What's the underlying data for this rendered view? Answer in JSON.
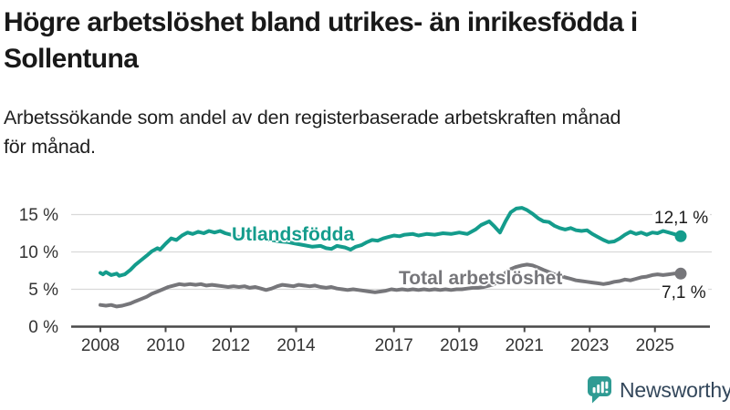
{
  "header": {
    "title": "Högre arbetslöshet bland utrikes- än inrikesfödda i Sollentuna",
    "title_lines": [
      "Högre arbetslöshet bland utrikes- än inrikesfödda i",
      "Sollentuna"
    ],
    "subtitle": "Arbetssökande som andel av den registerbaserade arbetskraften månad för månad.",
    "subtitle_lines": [
      "Arbetssökande som andel av den registerbaserade arbetskraften månad",
      "för månad."
    ]
  },
  "chart_data": {
    "type": "line",
    "title": "Högre arbetslöshet bland utrikes- än inrikesfödda i Sollentuna",
    "subtitle": "Arbetssökande som andel av den registerbaserade arbetskraften månad för månad.",
    "xlabel": "",
    "ylabel": "",
    "grid": "horizontal",
    "legend_position": "inline-labels",
    "x_range": [
      2008,
      2025.79
    ],
    "ylim": [
      0,
      16.5
    ],
    "y_tick_values": [
      0,
      5,
      10,
      15
    ],
    "y_tick_labels": [
      "0 %",
      "5 %",
      "10 %",
      "15 %"
    ],
    "x_tick_values": [
      2008,
      2010,
      2012,
      2014,
      2017,
      2019,
      2021,
      2023,
      2025
    ],
    "x_tick_labels": [
      "2008",
      "2010",
      "2012",
      "2014",
      "2017",
      "2019",
      "2021",
      "2023",
      "2025"
    ],
    "series": [
      {
        "id": "utlandsfodda",
        "name": "Utlandsfödda",
        "color": "#149c8c",
        "end_label": "12,1 %",
        "end_value": 12.1,
        "points": [
          [
            2008.0,
            7.2
          ],
          [
            2008.08,
            7.0
          ],
          [
            2008.17,
            7.3
          ],
          [
            2008.33,
            6.9
          ],
          [
            2008.5,
            7.1
          ],
          [
            2008.58,
            6.8
          ],
          [
            2008.75,
            7.0
          ],
          [
            2008.92,
            7.6
          ],
          [
            2009.08,
            8.3
          ],
          [
            2009.25,
            8.9
          ],
          [
            2009.42,
            9.5
          ],
          [
            2009.58,
            10.1
          ],
          [
            2009.75,
            10.5
          ],
          [
            2009.83,
            10.3
          ],
          [
            2010.0,
            11.1
          ],
          [
            2010.17,
            11.8
          ],
          [
            2010.33,
            11.6
          ],
          [
            2010.5,
            12.2
          ],
          [
            2010.67,
            12.6
          ],
          [
            2010.83,
            12.4
          ],
          [
            2011.0,
            12.7
          ],
          [
            2011.17,
            12.5
          ],
          [
            2011.33,
            12.8
          ],
          [
            2011.5,
            12.6
          ],
          [
            2011.67,
            12.8
          ],
          [
            2011.83,
            12.5
          ],
          [
            2012.0,
            12.3
          ],
          [
            2012.25,
            12.0
          ],
          [
            2012.5,
            11.9
          ],
          [
            2012.75,
            12.1
          ],
          [
            2013.0,
            11.8
          ],
          [
            2013.25,
            11.6
          ],
          [
            2013.5,
            11.4
          ],
          [
            2013.75,
            11.3
          ],
          [
            2014.0,
            11.1
          ],
          [
            2014.25,
            10.9
          ],
          [
            2014.5,
            10.7
          ],
          [
            2014.75,
            10.8
          ],
          [
            2014.92,
            10.5
          ],
          [
            2015.08,
            10.4
          ],
          [
            2015.25,
            10.8
          ],
          [
            2015.5,
            10.6
          ],
          [
            2015.67,
            10.3
          ],
          [
            2015.83,
            10.7
          ],
          [
            2016.0,
            10.9
          ],
          [
            2016.17,
            11.3
          ],
          [
            2016.33,
            11.6
          ],
          [
            2016.5,
            11.5
          ],
          [
            2016.67,
            11.8
          ],
          [
            2016.83,
            12.0
          ],
          [
            2017.0,
            12.2
          ],
          [
            2017.17,
            12.1
          ],
          [
            2017.33,
            12.3
          ],
          [
            2017.58,
            12.4
          ],
          [
            2017.75,
            12.2
          ],
          [
            2018.0,
            12.4
          ],
          [
            2018.25,
            12.3
          ],
          [
            2018.5,
            12.5
          ],
          [
            2018.75,
            12.4
          ],
          [
            2019.0,
            12.6
          ],
          [
            2019.25,
            12.4
          ],
          [
            2019.5,
            13.0
          ],
          [
            2019.67,
            13.6
          ],
          [
            2019.92,
            14.1
          ],
          [
            2020.08,
            13.4
          ],
          [
            2020.25,
            12.6
          ],
          [
            2020.42,
            14.1
          ],
          [
            2020.58,
            15.3
          ],
          [
            2020.75,
            15.8
          ],
          [
            2020.92,
            15.9
          ],
          [
            2021.08,
            15.6
          ],
          [
            2021.25,
            15.1
          ],
          [
            2021.42,
            14.5
          ],
          [
            2021.58,
            14.1
          ],
          [
            2021.75,
            14.0
          ],
          [
            2021.92,
            13.5
          ],
          [
            2022.08,
            13.2
          ],
          [
            2022.25,
            13.0
          ],
          [
            2022.42,
            13.2
          ],
          [
            2022.58,
            12.9
          ],
          [
            2022.75,
            12.8
          ],
          [
            2022.92,
            12.9
          ],
          [
            2023.08,
            12.4
          ],
          [
            2023.25,
            12.0
          ],
          [
            2023.42,
            11.6
          ],
          [
            2023.58,
            11.3
          ],
          [
            2023.75,
            11.4
          ],
          [
            2023.92,
            11.8
          ],
          [
            2024.08,
            12.3
          ],
          [
            2024.25,
            12.7
          ],
          [
            2024.42,
            12.4
          ],
          [
            2024.58,
            12.6
          ],
          [
            2024.75,
            12.3
          ],
          [
            2024.92,
            12.6
          ],
          [
            2025.08,
            12.5
          ],
          [
            2025.25,
            12.8
          ],
          [
            2025.42,
            12.6
          ],
          [
            2025.58,
            12.4
          ],
          [
            2025.79,
            12.1
          ]
        ]
      },
      {
        "id": "total",
        "name": "Total arbetslöshet",
        "color": "#76767a",
        "end_label": "7,1 %",
        "end_value": 7.1,
        "points": [
          [
            2008.0,
            2.9
          ],
          [
            2008.17,
            2.8
          ],
          [
            2008.33,
            2.9
          ],
          [
            2008.5,
            2.7
          ],
          [
            2008.67,
            2.8
          ],
          [
            2008.92,
            3.1
          ],
          [
            2009.08,
            3.4
          ],
          [
            2009.25,
            3.7
          ],
          [
            2009.42,
            4.0
          ],
          [
            2009.58,
            4.4
          ],
          [
            2009.75,
            4.7
          ],
          [
            2009.92,
            5.0
          ],
          [
            2010.08,
            5.3
          ],
          [
            2010.25,
            5.5
          ],
          [
            2010.42,
            5.7
          ],
          [
            2010.58,
            5.6
          ],
          [
            2010.75,
            5.7
          ],
          [
            2010.92,
            5.6
          ],
          [
            2011.08,
            5.7
          ],
          [
            2011.25,
            5.5
          ],
          [
            2011.42,
            5.6
          ],
          [
            2011.58,
            5.5
          ],
          [
            2011.75,
            5.4
          ],
          [
            2011.92,
            5.3
          ],
          [
            2012.08,
            5.4
          ],
          [
            2012.25,
            5.3
          ],
          [
            2012.42,
            5.4
          ],
          [
            2012.58,
            5.2
          ],
          [
            2012.75,
            5.3
          ],
          [
            2012.92,
            5.1
          ],
          [
            2013.08,
            4.9
          ],
          [
            2013.25,
            5.1
          ],
          [
            2013.42,
            5.4
          ],
          [
            2013.58,
            5.6
          ],
          [
            2013.75,
            5.5
          ],
          [
            2013.92,
            5.4
          ],
          [
            2014.08,
            5.6
          ],
          [
            2014.25,
            5.5
          ],
          [
            2014.42,
            5.4
          ],
          [
            2014.58,
            5.5
          ],
          [
            2014.75,
            5.3
          ],
          [
            2014.92,
            5.2
          ],
          [
            2015.08,
            5.3
          ],
          [
            2015.25,
            5.1
          ],
          [
            2015.42,
            5.0
          ],
          [
            2015.58,
            4.9
          ],
          [
            2015.75,
            5.0
          ],
          [
            2015.92,
            4.9
          ],
          [
            2016.08,
            4.8
          ],
          [
            2016.25,
            4.7
          ],
          [
            2016.42,
            4.6
          ],
          [
            2016.58,
            4.7
          ],
          [
            2016.75,
            4.8
          ],
          [
            2016.92,
            5.0
          ],
          [
            2017.08,
            4.9
          ],
          [
            2017.25,
            5.0
          ],
          [
            2017.42,
            4.9
          ],
          [
            2017.58,
            5.0
          ],
          [
            2017.75,
            4.9
          ],
          [
            2017.92,
            5.0
          ],
          [
            2018.08,
            4.9
          ],
          [
            2018.25,
            5.0
          ],
          [
            2018.42,
            4.9
          ],
          [
            2018.58,
            5.0
          ],
          [
            2018.75,
            4.9
          ],
          [
            2018.92,
            5.0
          ],
          [
            2019.08,
            5.0
          ],
          [
            2019.25,
            5.1
          ],
          [
            2019.42,
            5.2
          ],
          [
            2019.58,
            5.2
          ],
          [
            2019.75,
            5.3
          ],
          [
            2019.92,
            5.5
          ],
          [
            2020.08,
            5.7
          ],
          [
            2020.25,
            6.5
          ],
          [
            2020.42,
            7.2
          ],
          [
            2020.58,
            7.7
          ],
          [
            2020.75,
            8.0
          ],
          [
            2020.92,
            8.2
          ],
          [
            2021.08,
            8.3
          ],
          [
            2021.25,
            8.2
          ],
          [
            2021.42,
            7.9
          ],
          [
            2021.58,
            7.6
          ],
          [
            2021.75,
            7.3
          ],
          [
            2021.92,
            7.0
          ],
          [
            2022.08,
            6.8
          ],
          [
            2022.25,
            6.6
          ],
          [
            2022.42,
            6.4
          ],
          [
            2022.58,
            6.2
          ],
          [
            2022.75,
            6.1
          ],
          [
            2022.92,
            6.0
          ],
          [
            2023.08,
            5.9
          ],
          [
            2023.25,
            5.8
          ],
          [
            2023.42,
            5.7
          ],
          [
            2023.58,
            5.8
          ],
          [
            2023.75,
            6.0
          ],
          [
            2023.92,
            6.1
          ],
          [
            2024.08,
            6.3
          ],
          [
            2024.25,
            6.2
          ],
          [
            2024.42,
            6.4
          ],
          [
            2024.58,
            6.6
          ],
          [
            2024.75,
            6.7
          ],
          [
            2024.92,
            6.9
          ],
          [
            2025.08,
            7.0
          ],
          [
            2025.25,
            6.9
          ],
          [
            2025.42,
            7.0
          ],
          [
            2025.58,
            7.1
          ],
          [
            2025.79,
            7.1
          ]
        ]
      }
    ]
  },
  "footer": {
    "brand": "Newsworthy",
    "brand_color": "#33475b",
    "accent_color": "#2f9b93",
    "logo_icon": "bar-chart-speech-bubble-icon"
  }
}
